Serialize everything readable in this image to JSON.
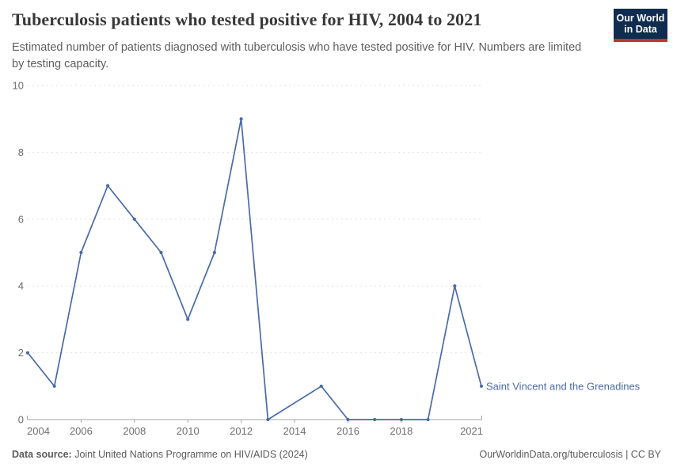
{
  "header": {
    "title": "Tuberculosis patients who tested positive for HIV, 2004 to 2021",
    "subtitle_lines": [
      "Estimated number of patients diagnosed with tuberculosis who have tested positive for HIV. Numbers are",
      "limited by testing capacity."
    ],
    "logo": {
      "line1": "Our World",
      "line2": "in Data",
      "bg_color": "#102D4F",
      "accent_color": "#C0362C"
    }
  },
  "chart_data": {
    "type": "line",
    "title": "Tuberculosis patients who tested positive for HIV, 2004 to 2021",
    "xlabel": "",
    "ylabel": "",
    "x": [
      2004,
      2005,
      2006,
      2007,
      2008,
      2009,
      2010,
      2011,
      2012,
      2013,
      2014,
      2015,
      2016,
      2017,
      2018,
      2019,
      2020,
      2021
    ],
    "series": [
      {
        "name": "Saint Vincent and the Grenadines",
        "values": [
          2,
          1,
          5,
          7,
          6,
          5,
          3,
          5,
          9,
          0,
          null,
          1,
          0,
          0,
          0,
          0,
          4,
          1
        ],
        "color": "#4A6BA5",
        "note": "2014 value missing; line interpolates between 2013 and 2015"
      }
    ],
    "ylim": [
      0,
      10
    ],
    "yticks": [
      0,
      2,
      4,
      6,
      8,
      10
    ],
    "xticks": [
      2004,
      2006,
      2008,
      2010,
      2012,
      2014,
      2016,
      2018,
      2021
    ],
    "grid": "dashed-horizontal",
    "legend_position": "end-of-line-label"
  },
  "footer": {
    "data_source_label": "Data source:",
    "data_source_text": " Joint United Nations Programme on HIV/AIDS (2024)",
    "credit": "OurWorldinData.org/tuberculosis | CC BY"
  },
  "colors": {
    "line": "#4A6BA5",
    "grid": "#E2E2E2",
    "axis": "#A5A5A5",
    "tick_label": "#6E6E6E",
    "title": "#383838",
    "subtitle": "#5E5E5E",
    "footer": "#5B5B5B"
  }
}
